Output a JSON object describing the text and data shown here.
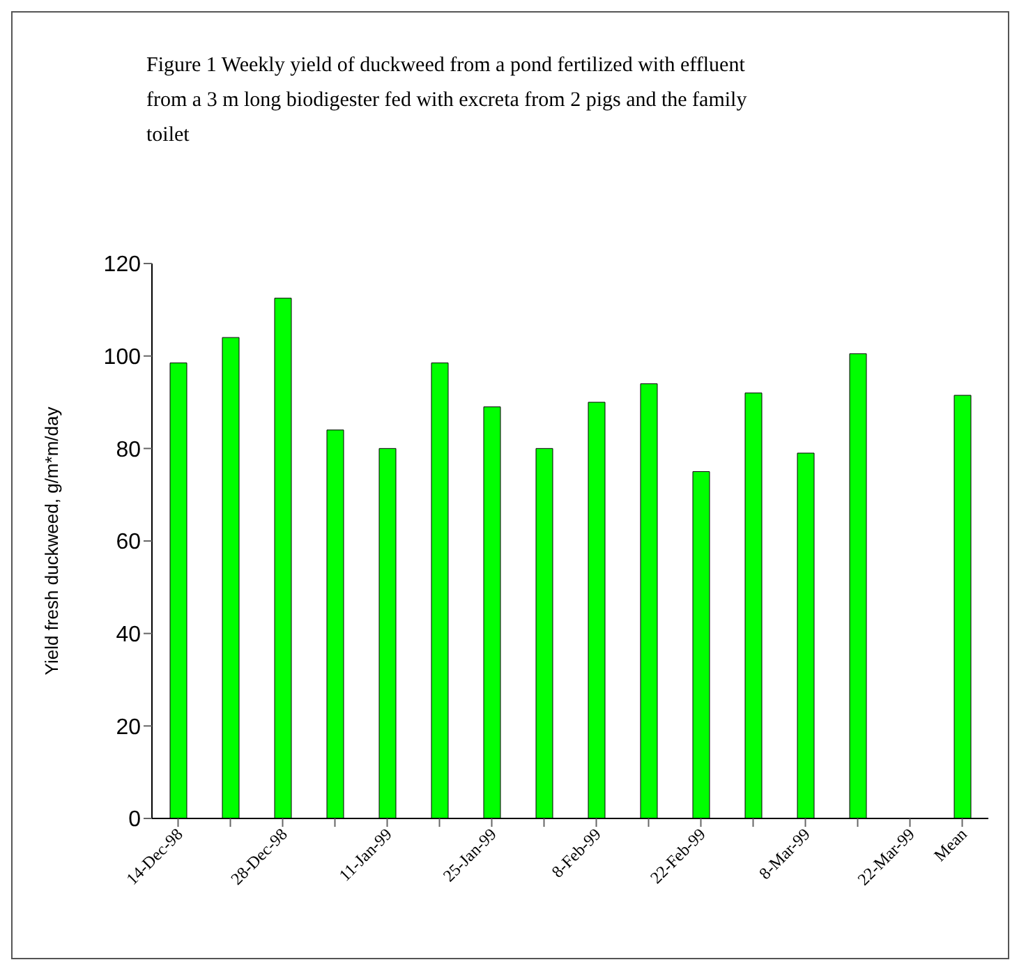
{
  "chart_data": {
    "type": "bar",
    "title": "Figure 1 Weekly yield of duckweed from a pond fertilized with effluent from a 3 m long biodigester fed with excreta from 2 pigs and the family toilet",
    "ylabel": "Yield fresh duckweed, g/m*m/day",
    "categories": [
      "14-Dec-98",
      null,
      "28-Dec-98",
      null,
      "11-Jan-99",
      null,
      "25-Jan-99",
      null,
      "8-Feb-99",
      null,
      "22-Feb-99",
      null,
      "8-Mar-99",
      null,
      "22-Mar-99",
      "Mean"
    ],
    "values": [
      98.5,
      104,
      112.5,
      84,
      80,
      98.5,
      89,
      80,
      90,
      94,
      75,
      92,
      79,
      100.5,
      null,
      91.5
    ],
    "color": "#00ff00",
    "ylim": [
      0,
      120
    ],
    "yticks": [
      0,
      20,
      40,
      60,
      80,
      100,
      120
    ]
  }
}
